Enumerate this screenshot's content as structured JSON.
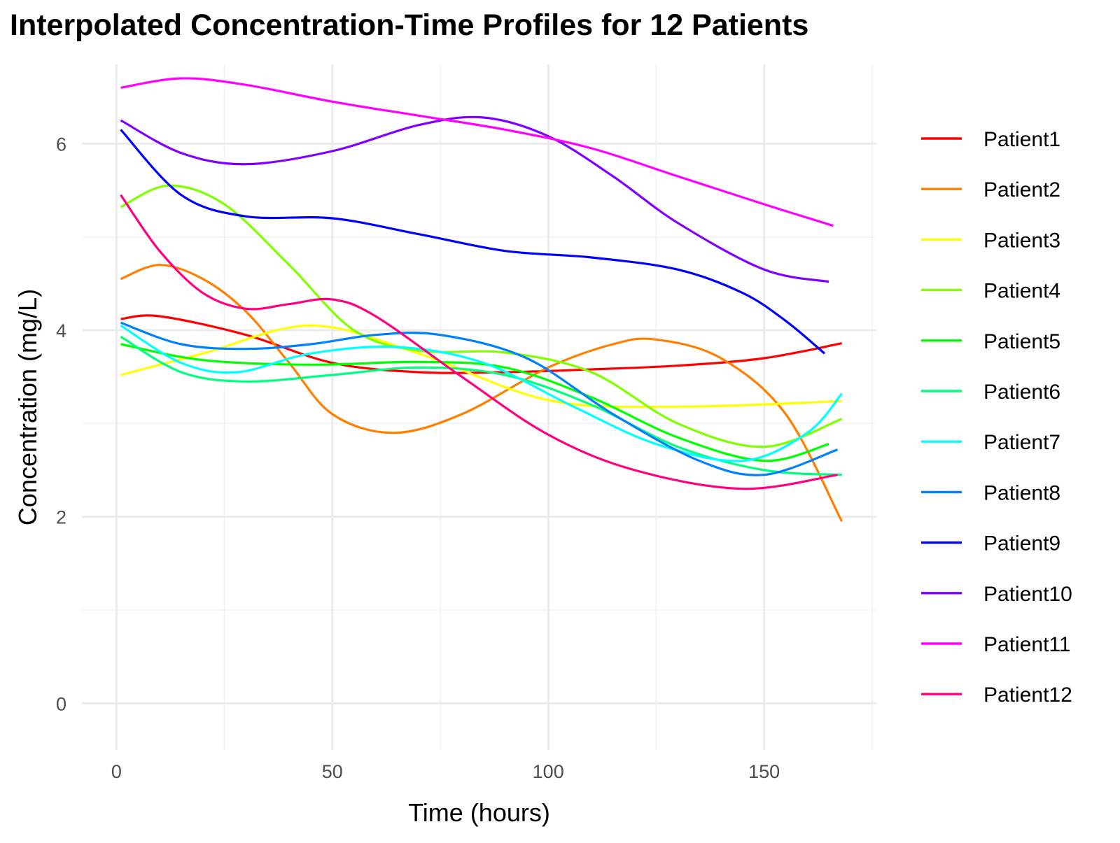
{
  "chart_data": {
    "type": "line",
    "title": "Interpolated Concentration-Time Profiles for 12 Patients",
    "xlabel": "Time (hours)",
    "ylabel": "Concentration (mg/L)",
    "xlim": [
      -8,
      176
    ],
    "ylim": [
      -0.5,
      6.85
    ],
    "x_ticks": [
      0,
      50,
      100,
      150
    ],
    "y_ticks": [
      0,
      2,
      4,
      6
    ],
    "grid": true,
    "legend_position": "right",
    "series": [
      {
        "name": "Patient1",
        "color": "#FF0000",
        "x": [
          1,
          10,
          30,
          50,
          70,
          90,
          110,
          130,
          150,
          168
        ],
        "y": [
          4.12,
          4.15,
          3.95,
          3.65,
          3.55,
          3.55,
          3.58,
          3.62,
          3.7,
          3.86
        ]
      },
      {
        "name": "Patient2",
        "color": "#FF8000",
        "x": [
          1,
          10,
          20,
          30,
          40,
          50,
          64,
          80,
          100,
          115,
          125,
          140,
          155,
          168
        ],
        "y": [
          4.55,
          4.7,
          4.55,
          4.2,
          3.65,
          3.1,
          2.9,
          3.1,
          3.6,
          3.85,
          3.9,
          3.7,
          3.1,
          1.95
        ]
      },
      {
        "name": "Patient3",
        "color": "#FFFF00",
        "x": [
          1,
          20,
          45,
          70,
          100,
          130,
          168
        ],
        "y": [
          3.52,
          3.75,
          4.05,
          3.75,
          3.25,
          3.18,
          3.24
        ]
      },
      {
        "name": "Patient4",
        "color": "#80FF00",
        "x": [
          1,
          12,
          25,
          40,
          55,
          70,
          90,
          110,
          130,
          150,
          168
        ],
        "y": [
          5.32,
          5.55,
          5.35,
          4.7,
          4.0,
          3.78,
          3.76,
          3.55,
          3.0,
          2.75,
          3.05
        ]
      },
      {
        "name": "Patient5",
        "color": "#00FF00",
        "x": [
          1,
          20,
          45,
          70,
          90,
          110,
          130,
          150,
          165
        ],
        "y": [
          3.85,
          3.68,
          3.63,
          3.66,
          3.6,
          3.28,
          2.85,
          2.6,
          2.78
        ]
      },
      {
        "name": "Patient6",
        "color": "#00FF80",
        "x": [
          1,
          15,
          30,
          50,
          70,
          90,
          110,
          130,
          150,
          168
        ],
        "y": [
          3.93,
          3.55,
          3.45,
          3.52,
          3.6,
          3.52,
          3.2,
          2.75,
          2.5,
          2.45
        ]
      },
      {
        "name": "Patient7",
        "color": "#00FFFF",
        "x": [
          1,
          15,
          28,
          45,
          65,
          85,
          105,
          125,
          145,
          160,
          168
        ],
        "y": [
          4.05,
          3.65,
          3.55,
          3.75,
          3.82,
          3.65,
          3.2,
          2.78,
          2.6,
          2.9,
          3.32
        ]
      },
      {
        "name": "Patient8",
        "color": "#0080FF",
        "x": [
          1,
          15,
          30,
          45,
          60,
          75,
          95,
          115,
          135,
          150,
          167
        ],
        "y": [
          4.08,
          3.85,
          3.8,
          3.85,
          3.95,
          3.95,
          3.7,
          3.1,
          2.6,
          2.45,
          2.72
        ]
      },
      {
        "name": "Patient9",
        "color": "#0000FF",
        "x": [
          1,
          15,
          30,
          50,
          70,
          90,
          110,
          130,
          145,
          155,
          164
        ],
        "y": [
          6.15,
          5.45,
          5.22,
          5.2,
          5.03,
          4.85,
          4.78,
          4.65,
          4.4,
          4.1,
          3.75
        ]
      },
      {
        "name": "Patient10",
        "color": "#8000FF",
        "x": [
          1,
          15,
          30,
          50,
          70,
          85,
          100,
          115,
          130,
          150,
          165
        ],
        "y": [
          6.25,
          5.9,
          5.78,
          5.92,
          6.2,
          6.28,
          6.08,
          5.65,
          5.15,
          4.65,
          4.52
        ]
      },
      {
        "name": "Patient11",
        "color": "#FF00FF",
        "x": [
          1,
          15,
          30,
          50,
          70,
          90,
          110,
          130,
          150,
          166
        ],
        "y": [
          6.6,
          6.7,
          6.63,
          6.45,
          6.3,
          6.15,
          5.95,
          5.65,
          5.35,
          5.12
        ]
      },
      {
        "name": "Patient12",
        "color": "#FF0080",
        "x": [
          1,
          10,
          20,
          30,
          40,
          50,
          60,
          80,
          100,
          120,
          145,
          167
        ],
        "y": [
          5.45,
          4.85,
          4.4,
          4.23,
          4.28,
          4.33,
          4.15,
          3.5,
          2.88,
          2.5,
          2.3,
          2.45
        ]
      }
    ]
  }
}
